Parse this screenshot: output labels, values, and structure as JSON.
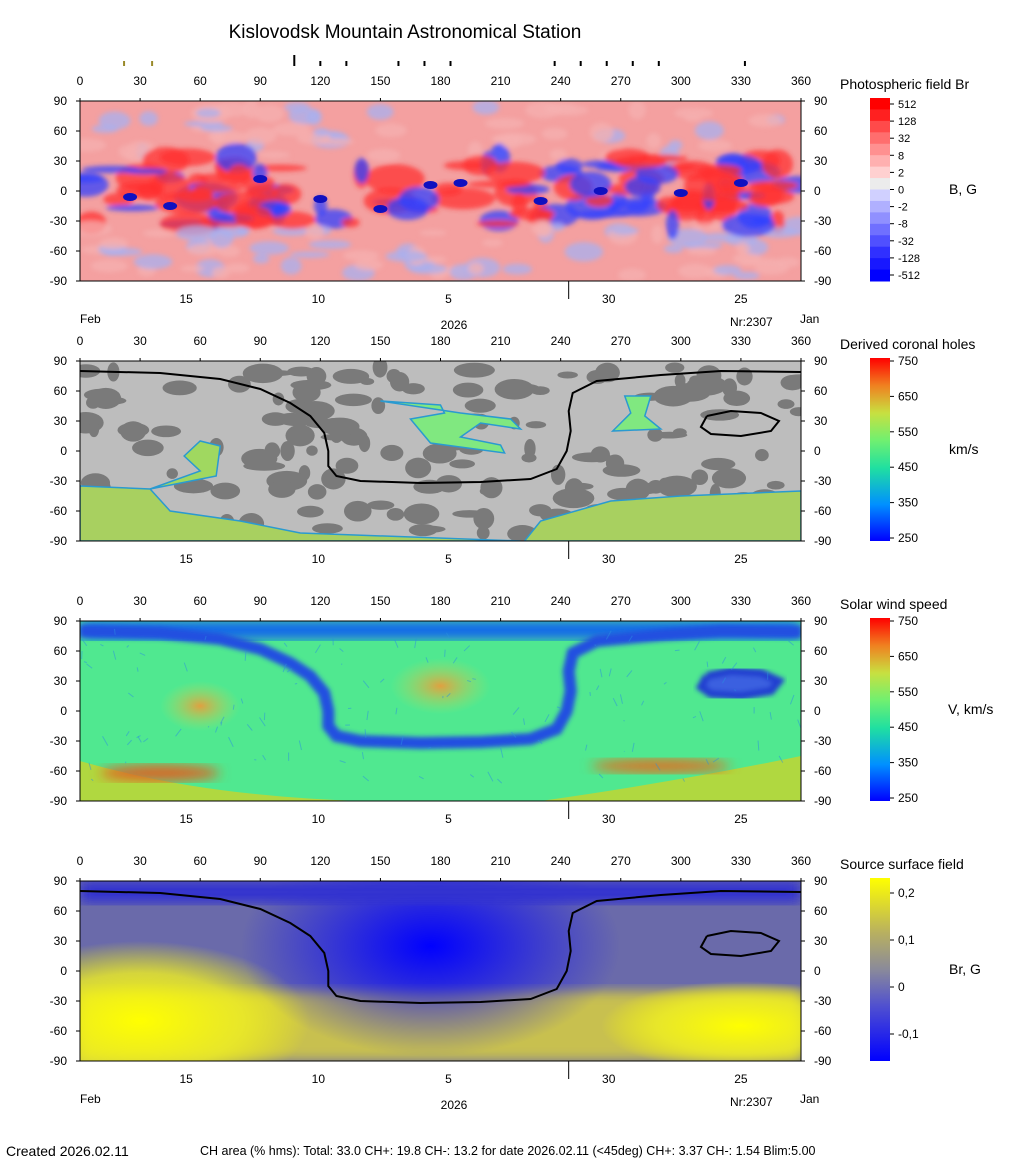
{
  "title": "Kislovodsk Mountain Astronomical Station",
  "top_markers": [
    {
      "lon": 22,
      "color": "#9a8a2a",
      "short": true
    },
    {
      "lon": 36,
      "color": "#9a8a2a",
      "short": true
    },
    {
      "lon": 107,
      "color": "#000000",
      "short": false
    },
    {
      "lon": 120,
      "color": "#000000",
      "short": true
    },
    {
      "lon": 133,
      "color": "#000000",
      "short": true
    },
    {
      "lon": 159,
      "color": "#000000",
      "short": true
    },
    {
      "lon": 172,
      "color": "#000000",
      "short": true
    },
    {
      "lon": 185,
      "color": "#000000",
      "short": true
    },
    {
      "lon": 237,
      "color": "#000000",
      "short": true
    },
    {
      "lon": 250,
      "color": "#000000",
      "short": true
    },
    {
      "lon": 263,
      "color": "#000000",
      "short": true
    },
    {
      "lon": 276,
      "color": "#000000",
      "short": true
    },
    {
      "lon": 289,
      "color": "#000000",
      "short": true
    },
    {
      "lon": 332,
      "color": "#000000",
      "short": true
    }
  ],
  "lon_ticks": [
    "0",
    "30",
    "60",
    "90",
    "120",
    "150",
    "180",
    "210",
    "240",
    "270",
    "300",
    "330",
    "360"
  ],
  "lat_ticks": [
    "90",
    "60",
    "30",
    "0",
    "-30",
    "-60",
    "-90"
  ],
  "date_ticks": [
    {
      "label": "15",
      "lon": 53
    },
    {
      "label": "10",
      "lon": 119
    },
    {
      "label": "5",
      "lon": 184
    },
    {
      "label": "30",
      "lon": 264
    },
    {
      "label": "25",
      "lon": 330
    }
  ],
  "month_break_lon": 244,
  "date_labels": {
    "left": "Feb",
    "year": "2026",
    "rotation": "Nr:2307",
    "right": "Jan"
  },
  "panels": [
    {
      "key": "photo",
      "title": "Photospheric field Br",
      "unit": "B, G",
      "colorbar": {
        "type": "steps",
        "labels": [
          "512",
          "128",
          "32",
          "8",
          "2",
          "0",
          "-2",
          "-8",
          "-32",
          "-128",
          "-512"
        ]
      }
    },
    {
      "key": "holes",
      "title": "Derived coronal holes",
      "unit": "km/s",
      "colorbar": {
        "type": "jet",
        "labels": [
          "750",
          "650",
          "550",
          "450",
          "350",
          "250"
        ]
      }
    },
    {
      "key": "wind",
      "title": "Solar wind speed",
      "unit": "V, km/s",
      "colorbar": {
        "type": "jet",
        "labels": [
          "750",
          "650",
          "550",
          "450",
          "350",
          "250"
        ]
      }
    },
    {
      "key": "source",
      "title": "Source surface field",
      "unit": "Br, G",
      "colorbar": {
        "type": "byg",
        "labels": [
          "0,2",
          "0,1",
          "0",
          "-0,1"
        ]
      }
    }
  ],
  "chart_data": {
    "type": "heatmap",
    "xlim": [
      0,
      360
    ],
    "ylim": [
      -90,
      90
    ],
    "neutral_line": [
      [
        0,
        80
      ],
      [
        40,
        78
      ],
      [
        70,
        72
      ],
      [
        90,
        62
      ],
      [
        105,
        48
      ],
      [
        115,
        35
      ],
      [
        122,
        18
      ],
      [
        124,
        0
      ],
      [
        124,
        -15
      ],
      [
        128,
        -25
      ],
      [
        140,
        -30
      ],
      [
        170,
        -32
      ],
      [
        200,
        -31
      ],
      [
        225,
        -28
      ],
      [
        238,
        -18
      ],
      [
        243,
        0
      ],
      [
        245,
        20
      ],
      [
        244,
        40
      ],
      [
        246,
        58
      ],
      [
        258,
        70
      ],
      [
        290,
        76
      ],
      [
        320,
        80
      ],
      [
        360,
        79
      ]
    ],
    "neutral_loop": [
      [
        313,
        35
      ],
      [
        325,
        40
      ],
      [
        340,
        38
      ],
      [
        349,
        30
      ],
      [
        345,
        20
      ],
      [
        330,
        15
      ],
      [
        315,
        17
      ],
      [
        310,
        24
      ],
      [
        313,
        35
      ]
    ],
    "source_min": {
      "lon": 175,
      "lat": 25
    },
    "source_max": {
      "lon": 30,
      "lat": -50
    }
  },
  "footer": {
    "created": "Created  2026.02.11",
    "stats": "CH area (% hms): Total: 33.0 CH+: 19.8   CH-: 13.2 for date 2026.02.11 (<45deg) CH+: 3.37    CH-: 1.54 Blim:5.00"
  },
  "colors": {
    "blue": "#0000ff",
    "red": "#ff0000",
    "grey_dark": "#7a7a7a",
    "grey_light": "#bdbdbd",
    "yellow": "#ffff00"
  }
}
